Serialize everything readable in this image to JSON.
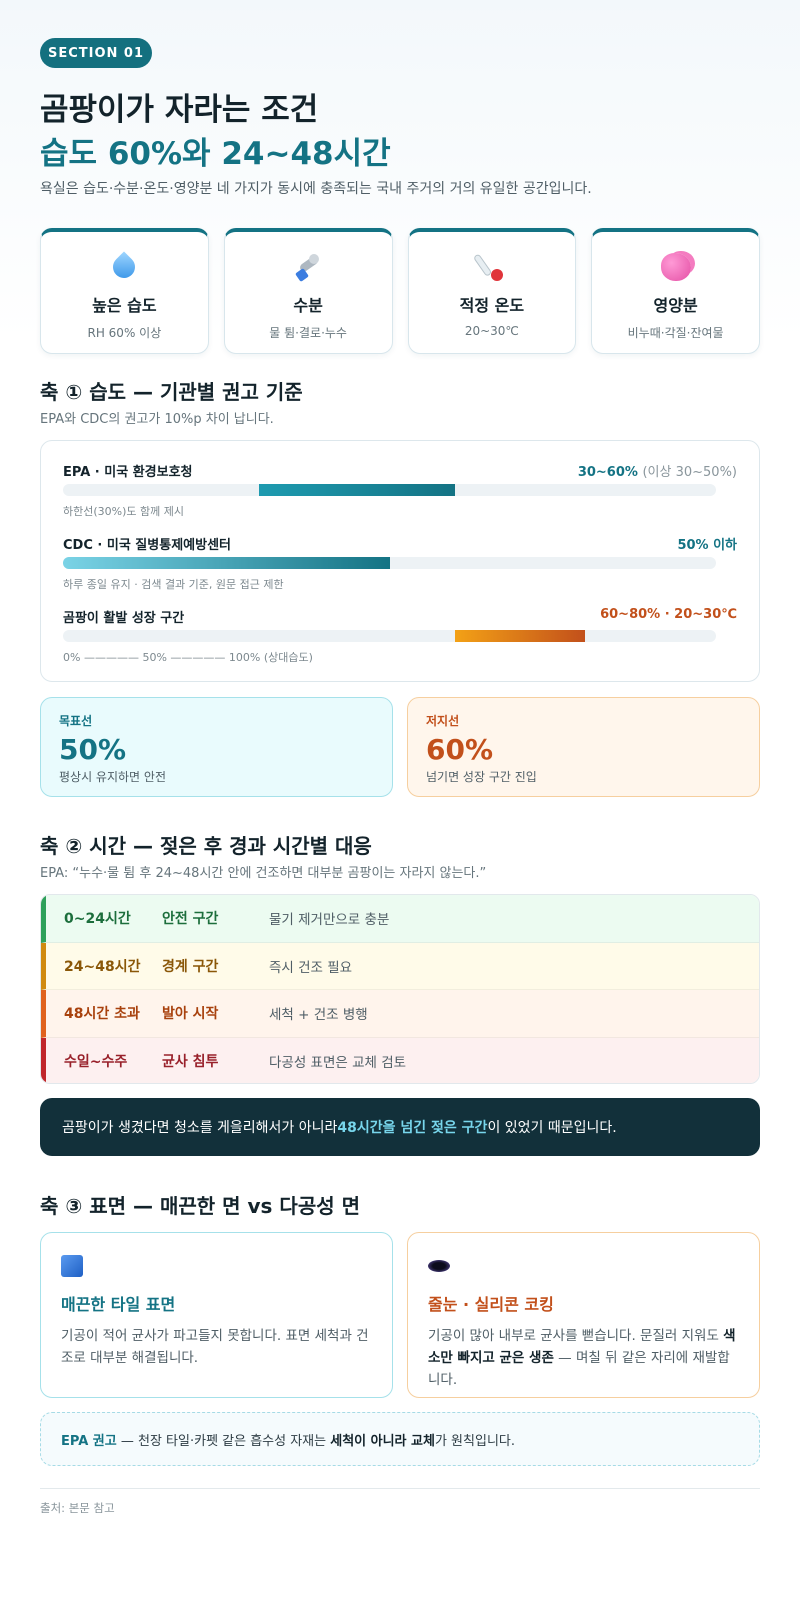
{
  "header": {
    "badge": "SECTION 01",
    "title_line1": "곰팡이가 자라는 조건",
    "title_line2": "습도 60%와 24~48시간",
    "intro": "욕실은 습도·수분·온도·영양분 네 가지가 동시에 충족되는 국내 주거의 거의 유일한 공간입니다."
  },
  "factors": [
    {
      "icon": "water-drop-icon",
      "name": "높은 습도",
      "sub": "RH 60% 이상"
    },
    {
      "icon": "shower-faucet-icon",
      "name": "수분",
      "sub": "물 튐·결로·누수"
    },
    {
      "icon": "thermometer-icon",
      "name": "적정 온도",
      "sub": "20~30℃"
    },
    {
      "icon": "nutrient-blob-icon",
      "name": "영양분",
      "sub": "비누때·각질·잔여물"
    }
  ],
  "axis1": {
    "title": "축 ① 습도 — 기관별 권고 기준",
    "subtitle": "EPA와 CDC의 권고가 10%p 차이 납니다.",
    "rows": [
      {
        "label": "EPA · 미국 환경보호청",
        "value": "30~60%",
        "value_extra": "(이상 30~50%)",
        "note": "하한선(30%)도 함께 제시",
        "range": [
          30,
          60
        ],
        "color": "#147384"
      },
      {
        "label": "CDC · 미국 질병통제예방센터",
        "value": "50% 이하",
        "value_extra": "",
        "note": "하루 종일 유지 · 검색 결과 기준, 원문 접근 제한",
        "range": [
          0,
          50
        ],
        "color": "#147384"
      },
      {
        "label": "곰팡이 활발 성장 구간",
        "value": "60~80% · 20~30℃",
        "value_extra": "",
        "note": "0% ————— 50% ————— 100% (상대습도)",
        "range": [
          60,
          80
        ],
        "color": "#c2501b"
      }
    ]
  },
  "targets": {
    "good": {
      "label": "목표선",
      "value": "50%",
      "desc": "평상시 유지하면 안전"
    },
    "bad": {
      "label": "저지선",
      "value": "60%",
      "desc": "넘기면 성장 구간 진입"
    }
  },
  "axis2": {
    "title": "축 ② 시간 — 젖은 후 경과 시간별 대응",
    "subtitle": "EPA: “누수·물 튐 후 24~48시간 안에 건조하면 대부분 곰팡이는 자라지 않는다.”",
    "rows": [
      {
        "time": "0~24시간",
        "stage": "안전 구간",
        "action": "물기 제거만으로 충분",
        "bg": "#ecfbf1",
        "border": "#2ea05a",
        "text": "#1c6e3c"
      },
      {
        "time": "24~48시간",
        "stage": "경계 구간",
        "action": "즉시 건조 필요",
        "bg": "#fffbe9",
        "border": "#d08a10",
        "text": "#8a5708"
      },
      {
        "time": "48시간 초과",
        "stage": "발아 시작",
        "action": "세척 + 건조 병행",
        "bg": "#fff4ec",
        "border": "#e0621e",
        "text": "#a8410d"
      },
      {
        "time": "수일~수주",
        "stage": "균사 침투",
        "action": "다공성 표면은 교체 검토",
        "bg": "#fdf0f0",
        "border": "#c0262b",
        "text": "#98202a"
      }
    ]
  },
  "callout": {
    "before": "곰팡이가 생겼다면 청소를 게을리해서가 아니라 ",
    "highlight": "48시간을 넘긴 젖은 구간",
    "after": "이 있었기 때문입니다."
  },
  "axis3": {
    "title": "축 ③ 표면 — 매끈한 면 vs 다공성 면",
    "smooth": {
      "icon": "blue-tile-icon",
      "title": "매끈한 타일 표면",
      "desc": "기공이 적어 균사가 파고들지 못합니다. 표면 세척과 건조로 대부분 해결됩니다."
    },
    "porous": {
      "icon": "porous-hole-icon",
      "title": "줄눈 · 실리콘 코킹",
      "desc_before": "기공이 많아 내부로 균사를 뻗습니다. 문질러 지워도 ",
      "desc_bold": "색소만 빠지고 균은 생존",
      "desc_after": " — 며칠 뒤 같은 자리에 재발합니다."
    }
  },
  "epa_note": {
    "key": "EPA 권고",
    "before": " — 천장 타일·카펫 같은 흡수성 자재는 ",
    "bold": "세척이 아니라 교체",
    "after": "가 원칙입니다."
  },
  "footer": {
    "source": "출처: 본문 참고"
  }
}
